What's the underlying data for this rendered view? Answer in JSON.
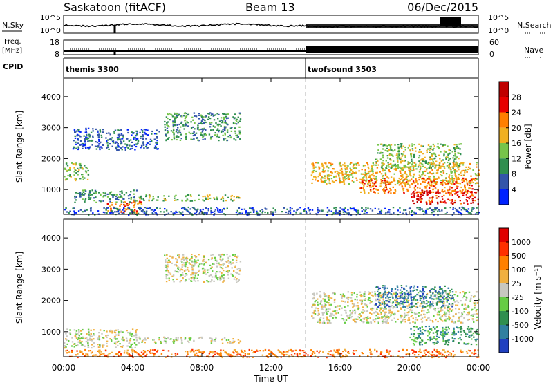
{
  "header": {
    "title": "Saskatoon (fitACF)",
    "beam": "Beam 13",
    "date": "06/Dec/2015"
  },
  "noise_panel": {
    "left_label": "N.Sky",
    "left_ticks": [
      "10^5",
      "10^0"
    ],
    "right_ticks": [
      "10^5",
      "10^0"
    ],
    "right_label": "N.Search"
  },
  "freq_panel": {
    "left_label_1": "Freq.",
    "left_label_2": "[MHz]",
    "left_ticks": [
      "18",
      "8"
    ],
    "right_ticks": [
      "60",
      "0"
    ],
    "right_label": "Nave"
  },
  "cpid_panel": {
    "label": "CPID",
    "modes": [
      {
        "name": "themis 3300",
        "start_hour": 0
      },
      {
        "name": "twofsound 3503",
        "start_hour": 14
      }
    ]
  },
  "chart_data": [
    {
      "type": "heatmap",
      "name": "power",
      "ylabel": "Slant Range [km]",
      "yticks": [
        "1000",
        "2000",
        "3000",
        "4000"
      ],
      "ylim": [
        200,
        4600
      ],
      "xlim": [
        0,
        24
      ],
      "colorbar": {
        "label": "Power [dB]",
        "ticks": [
          "4",
          "8",
          "12",
          "16",
          "20",
          "24",
          "28"
        ],
        "colors": [
          "#0022ff",
          "#3355aa",
          "#2f8f4f",
          "#76c44a",
          "#f0b020",
          "#ff7f00",
          "#e80000",
          "#c00000"
        ]
      },
      "regions": [
        {
          "x": [
            0.0,
            1.4
          ],
          "y": [
            1300,
            1900
          ],
          "level": 3
        },
        {
          "x": [
            0.6,
            4.2
          ],
          "y": [
            600,
            1000
          ],
          "level": 2
        },
        {
          "x": [
            2.5,
            4.5
          ],
          "y": [
            250,
            650
          ],
          "level": 5
        },
        {
          "x": [
            4.3,
            10.2
          ],
          "y": [
            650,
            850
          ],
          "level": 3
        },
        {
          "x": [
            5.8,
            10.2
          ],
          "y": [
            2600,
            3500
          ],
          "level": 2
        },
        {
          "x": [
            0.5,
            5.5
          ],
          "y": [
            2300,
            3000
          ],
          "level": 1
        },
        {
          "x": [
            14.3,
            24.0
          ],
          "y": [
            1200,
            1900
          ],
          "level": 4
        },
        {
          "x": [
            17.0,
            24.0
          ],
          "y": [
            900,
            1400
          ],
          "level": 5
        },
        {
          "x": [
            20.0,
            24.0
          ],
          "y": [
            550,
            1000
          ],
          "level": 6
        },
        {
          "x": [
            18.0,
            23.0
          ],
          "y": [
            1700,
            2500
          ],
          "level": 3
        },
        {
          "x": [
            0.0,
            24.0
          ],
          "y": [
            200,
            450
          ],
          "level": 1
        }
      ]
    },
    {
      "type": "heatmap",
      "name": "velocity",
      "ylabel": "Slant Range [km]",
      "yticks": [
        "1000",
        "2000",
        "3000",
        "4000"
      ],
      "ylim": [
        200,
        4600
      ],
      "xlim": [
        0,
        24
      ],
      "colorbar": {
        "label": "Velocity [m s⁻¹]",
        "ticks": [
          "1000",
          "500",
          "100",
          "25",
          "-25",
          "-100",
          "-500",
          "-1000"
        ],
        "colors": [
          "#2040c0",
          "#3080a0",
          "#2f8f4f",
          "#66cc44",
          "#c8c8c0",
          "#f0b040",
          "#ff8000",
          "#ff3000",
          "#e00000"
        ]
      },
      "regions": [
        {
          "x": [
            0.0,
            4.2
          ],
          "y": [
            500,
            1100
          ],
          "level": 4
        },
        {
          "x": [
            4.3,
            10.2
          ],
          "y": [
            650,
            850
          ],
          "level": 4
        },
        {
          "x": [
            5.8,
            10.2
          ],
          "y": [
            2600,
            3500
          ],
          "level": 4
        },
        {
          "x": [
            14.3,
            24.0
          ],
          "y": [
            1300,
            2300
          ],
          "level": 4
        },
        {
          "x": [
            18.0,
            22.5
          ],
          "y": [
            1800,
            2500
          ],
          "level": 1
        },
        {
          "x": [
            20.0,
            24.0
          ],
          "y": [
            600,
            1200
          ],
          "level": 2
        },
        {
          "x": [
            0.0,
            24.0
          ],
          "y": [
            200,
            450
          ],
          "level": 6
        }
      ]
    }
  ],
  "x_axis": {
    "ticks": [
      "00:00",
      "04:00",
      "08:00",
      "12:00",
      "16:00",
      "20:00",
      "00:00"
    ],
    "label": "Time UT"
  }
}
